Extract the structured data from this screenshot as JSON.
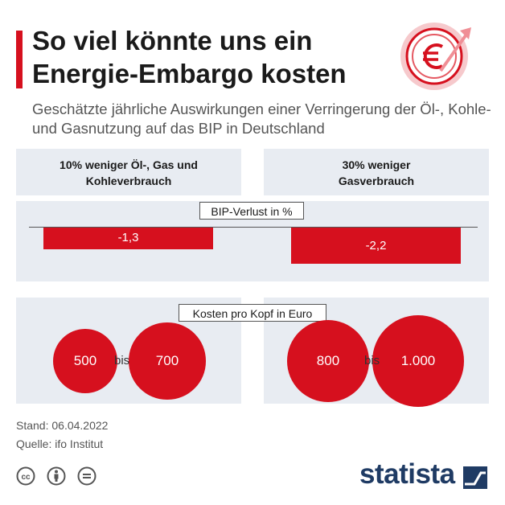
{
  "header": {
    "title": "So viel könnte uns ein Energie-Embargo kosten",
    "subtitle": "Geschätzte jährliche Auswirkungen einer Verringerung der Öl-, Kohle- und Gasnutzung auf das BIP in Deutschland"
  },
  "chart_data": {
    "type": "bar",
    "title": "So viel könnte uns ein Energie-Embargo kosten",
    "subtitle": "Geschätzte jährliche Auswirkungen einer Verringerung der Öl-, Kohle- und Gasnutzung auf das BIP in Deutschland",
    "categories": [
      "10% weniger Öl-, Gas und Kohleverbrauch",
      "30% weniger Gasverbrauch"
    ],
    "series": [
      {
        "name": "BIP-Verlust in %",
        "values": [
          -1.3,
          -2.2
        ],
        "labels": [
          "-1,3",
          "-2,2"
        ]
      },
      {
        "name": "Kosten pro Kopf in Euro (von)",
        "values": [
          500,
          800
        ],
        "labels": [
          "500",
          "800"
        ]
      },
      {
        "name": "Kosten pro Kopf in Euro (bis)",
        "values": [
          700,
          1000
        ],
        "labels": [
          "700",
          "1.000"
        ]
      }
    ],
    "bip_label": "BIP-Verlust in %",
    "cost_label": "Kosten pro Kopf in Euro",
    "range_word": "bis",
    "color": "#d6101e"
  },
  "footer": {
    "stand": "Stand: 06.04.2022",
    "quelle": "Quelle: ifo Institut",
    "brand": "statista"
  },
  "colors": {
    "accent": "#d6101e",
    "panel": "#e8ecf2",
    "brand": "#1f3b64"
  },
  "icons": [
    "euro-trend-icon",
    "cc-icon",
    "by-icon",
    "nd-icon",
    "statista-logo-icon"
  ]
}
